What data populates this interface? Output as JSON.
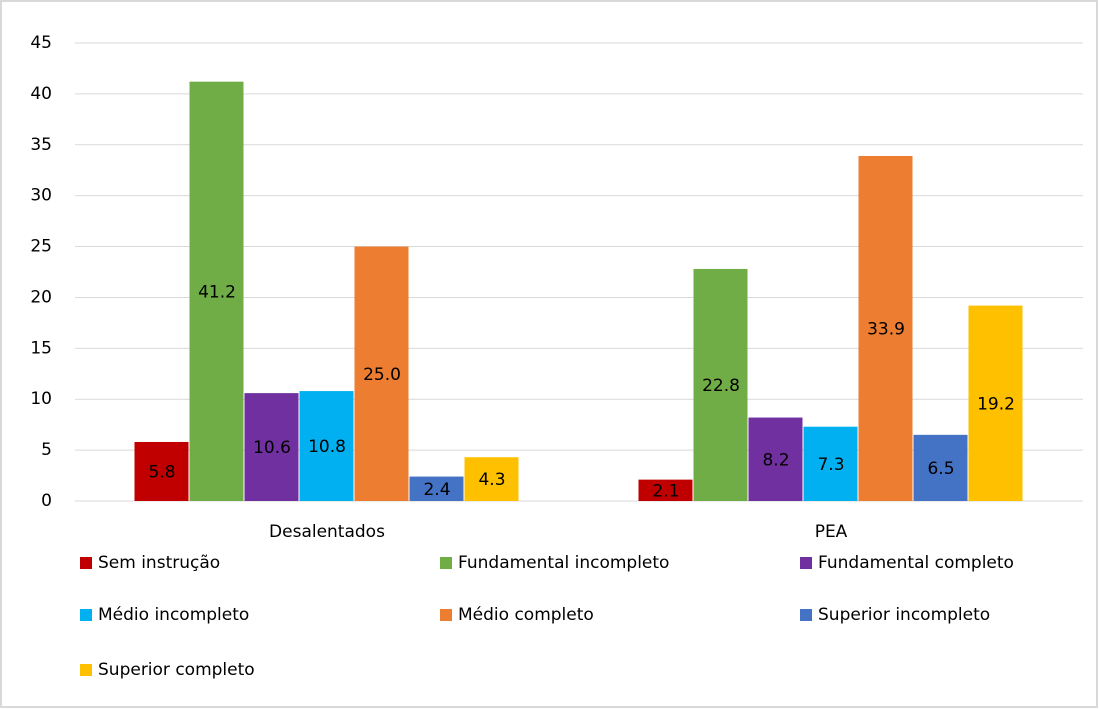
{
  "chart_data": {
    "type": "bar",
    "categories": [
      "Desalentados",
      "PEA"
    ],
    "series": [
      {
        "name": "Sem instrução",
        "color": "#c00000",
        "values": [
          5.8,
          2.1
        ],
        "value_labels": [
          "5.8",
          "2.1"
        ]
      },
      {
        "name": "Fundamental incompleto",
        "color": "#70ad47",
        "values": [
          41.2,
          22.8
        ],
        "value_labels": [
          "41.2",
          "22.8"
        ]
      },
      {
        "name": "Fundamental completo",
        "color": "#7030a0",
        "values": [
          10.6,
          8.2
        ],
        "value_labels": [
          "10.6",
          "8.2"
        ]
      },
      {
        "name": "Médio incompleto",
        "color": "#00b0f0",
        "values": [
          10.8,
          7.3
        ],
        "value_labels": [
          "10.8",
          "7.3"
        ]
      },
      {
        "name": "Médio completo",
        "color": "#ed7d31",
        "values": [
          25.0,
          33.9
        ],
        "value_labels": [
          "25.0",
          "33.9"
        ]
      },
      {
        "name": "Superior incompleto",
        "color": "#4472c4",
        "values": [
          2.4,
          6.5
        ],
        "value_labels": [
          "2.4",
          "6.5"
        ]
      },
      {
        "name": "Superior completo",
        "color": "#ffc000",
        "values": [
          4.3,
          19.2
        ],
        "value_labels": [
          "4.3",
          "19.2"
        ]
      }
    ],
    "ylim": [
      0,
      45
    ],
    "yticks": [
      0,
      5,
      10,
      15,
      20,
      25,
      30,
      35,
      40,
      45
    ],
    "grid": true,
    "legend": "bottom"
  }
}
